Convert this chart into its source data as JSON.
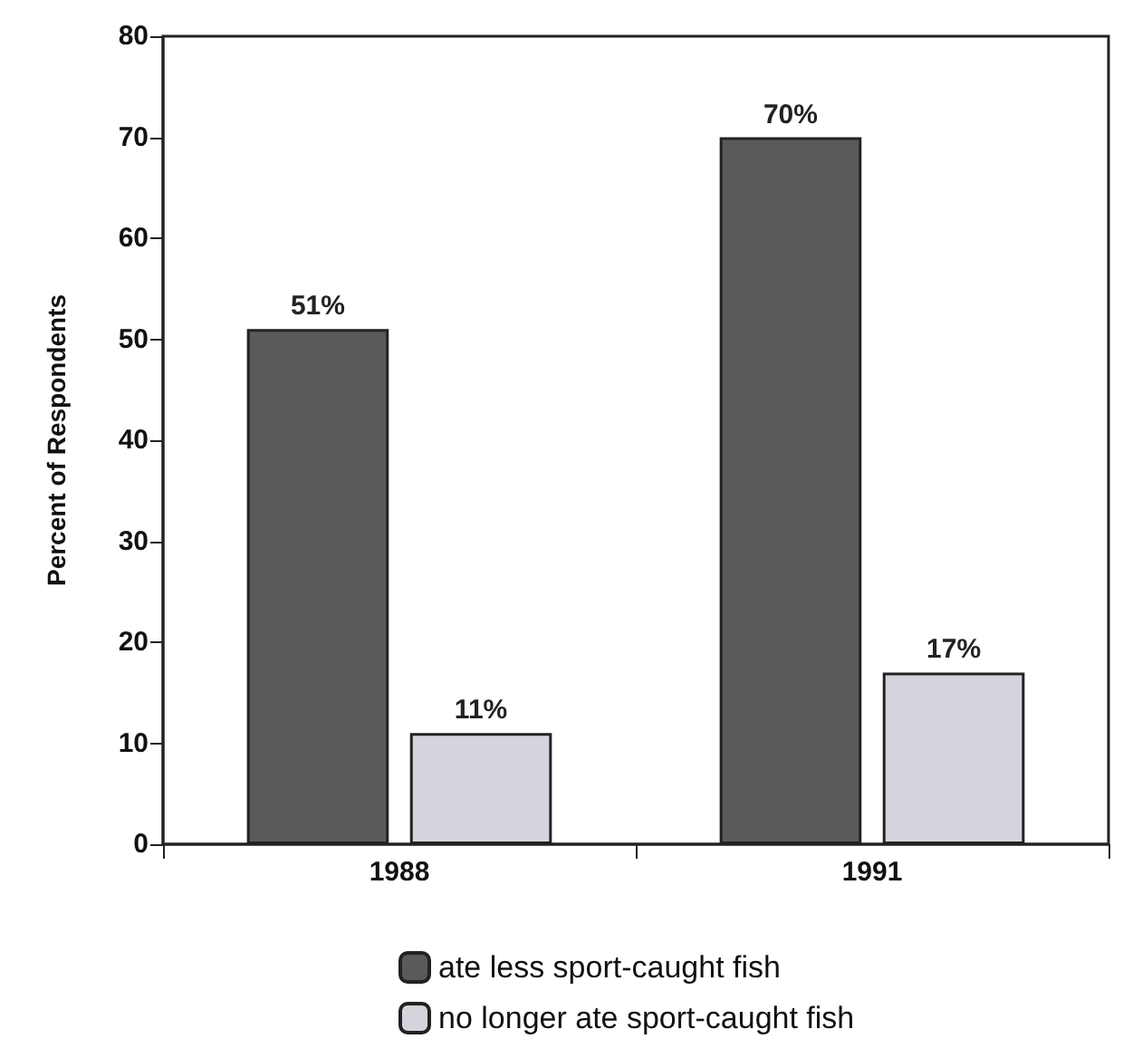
{
  "chart_data": {
    "type": "bar",
    "ylabel": "Percent of Respondents",
    "categories": [
      "1988",
      "1991"
    ],
    "series": [
      {
        "name": "ate less sport-caught fish",
        "color": "#5a5a5a",
        "values": [
          51,
          70
        ],
        "value_labels": [
          "51%",
          "70%"
        ]
      },
      {
        "name": "no longer ate sport-caught fish",
        "color": "#d4d4dc",
        "values": [
          11,
          17
        ],
        "value_labels": [
          "11%",
          "17%"
        ]
      }
    ],
    "ylim": [
      0,
      80
    ],
    "yticks": [
      0,
      10,
      20,
      30,
      40,
      50,
      60,
      70,
      80
    ],
    "grid": false,
    "legend": "bottom"
  }
}
